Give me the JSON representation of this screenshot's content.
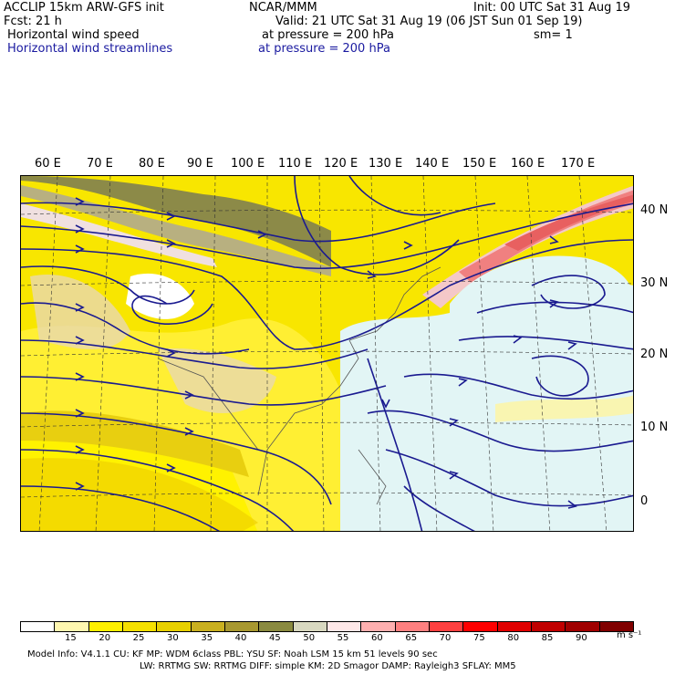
{
  "header": {
    "model": "ACCLIP 15km ARW-GFS init",
    "center": "NCAR/MMM",
    "init": "Init: 00 UTC Sat 31 Aug 19",
    "fcst": "Fcst:   21 h",
    "valid": "Valid: 21 UTC Sat 31 Aug 19 (06 JST Sun 01 Sep 19)",
    "field1": "Horizontal wind speed",
    "field1_level": "at pressure =  200 hPa",
    "smooth": "sm= 1",
    "field2": "Horizontal wind streamlines",
    "field2_level": "at pressure =  200 hPa"
  },
  "longitude_labels": [
    "60 E",
    "70 E",
    "80 E",
    "90 E",
    "100 E",
    "110 E",
    "120 E",
    "130 E",
    "140 E",
    "150 E",
    "160 E",
    "170 E"
  ],
  "latitude_labels": [
    "40 N",
    "30 N",
    "20 N",
    "10 N",
    "0"
  ],
  "colorbar": {
    "labels": [
      "15",
      "20",
      "25",
      "30",
      "35",
      "40",
      "45",
      "50",
      "55",
      "60",
      "65",
      "70",
      "75",
      "80",
      "85",
      "90"
    ],
    "unit": "m s⁻¹",
    "colors": [
      "#ffffff",
      "#fff7b0",
      "#fff000",
      "#f5e000",
      "#e8d000",
      "#c9b020",
      "#a89830",
      "#8a8a40",
      "#d8d8c0",
      "#ffe8e8",
      "#ffb0b0",
      "#ff8080",
      "#ff4040",
      "#ff0000",
      "#e00000",
      "#c00000",
      "#a00000",
      "#800000"
    ]
  },
  "model_info": {
    "line1": "Model Info: V4.1.1     CU: KF       MP: WDM 6class   PBL: YSU       SF: Noah LSM     15 km    51 levels   90 sec",
    "line2": "LW: RRTMG     SW: RRTMG    DIFF: simple KM: 2D Smagor DAMP: Rayleigh3   SFLAY: MM5"
  }
}
